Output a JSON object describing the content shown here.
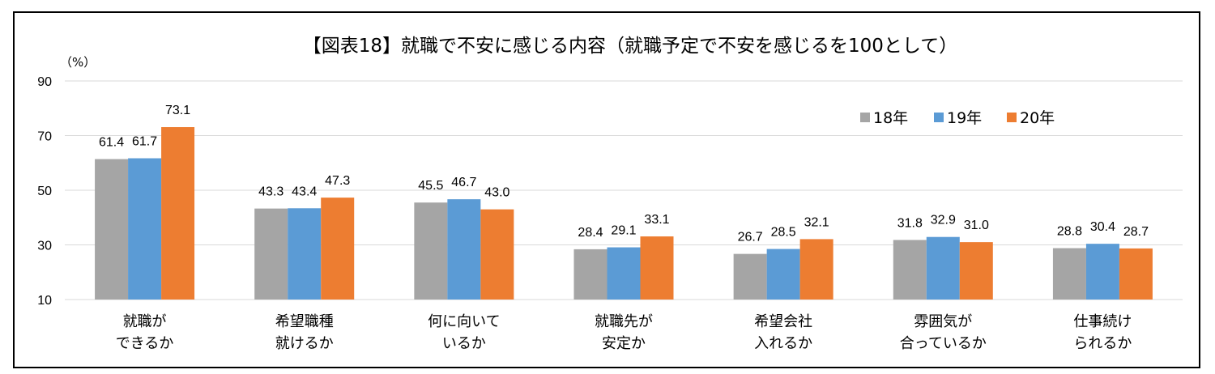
{
  "chart_data": {
    "type": "bar",
    "title": "【図表18】就職で不安に感じる内容（就職予定で不安を感じるを100として）",
    "unit": "（%）",
    "ylim": [
      10,
      90
    ],
    "yticks": [
      10,
      30,
      50,
      70,
      90
    ],
    "grid": true,
    "legend_position": "top-right",
    "categories": [
      [
        "就職が",
        "できるか"
      ],
      [
        "希望職種",
        "就けるか"
      ],
      [
        "何に向いて",
        "いるか"
      ],
      [
        "就職先が",
        "安定か"
      ],
      [
        "希望会社",
        "入れるか"
      ],
      [
        "雰囲気が",
        "合っているか"
      ],
      [
        "仕事続け",
        "られるか"
      ]
    ],
    "series": [
      {
        "name": "18年",
        "color": "#a5a5a5",
        "values": [
          61.4,
          43.3,
          45.5,
          28.4,
          26.7,
          31.8,
          28.8
        ]
      },
      {
        "name": "19年",
        "color": "#5b9bd5",
        "values": [
          61.7,
          43.4,
          46.7,
          29.1,
          28.5,
          32.9,
          30.4
        ]
      },
      {
        "name": "20年",
        "color": "#ed7d31",
        "values": [
          73.1,
          47.3,
          43.0,
          33.1,
          32.1,
          31.0,
          28.7
        ]
      }
    ],
    "value_labels": [
      [
        "61.4",
        "43.3",
        "45.5",
        "28.4",
        "26.7",
        "31.8",
        "28.8"
      ],
      [
        "61.7",
        "43.4",
        "46.7",
        "29.1",
        "28.5",
        "32.9",
        "30.4"
      ],
      [
        "73.1",
        "47.3",
        "43.0",
        "33.1",
        "32.1",
        "31.0",
        "28.7"
      ]
    ]
  }
}
